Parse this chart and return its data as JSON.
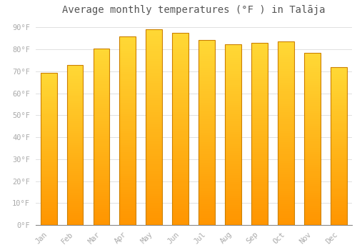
{
  "months": [
    "Jan",
    "Feb",
    "Mar",
    "Apr",
    "May",
    "Jun",
    "Jul",
    "Aug",
    "Sep",
    "Oct",
    "Nov",
    "Dec"
  ],
  "values": [
    69.4,
    73.0,
    80.4,
    85.8,
    89.2,
    87.6,
    84.2,
    82.4,
    82.9,
    83.7,
    78.4,
    71.8
  ],
  "title": "Average monthly temperatures (°F ) in Talāja",
  "ylabel_ticks": [
    "0°F",
    "10°F",
    "20°F",
    "30°F",
    "40°F",
    "50°F",
    "60°F",
    "70°F",
    "80°F",
    "90°F"
  ],
  "ytick_values": [
    0,
    10,
    20,
    30,
    40,
    50,
    60,
    70,
    80,
    90
  ],
  "ylim": [
    0,
    93
  ],
  "background_color": "#ffffff",
  "grid_color": "#e0e0e0",
  "tick_label_color": "#aaaaaa",
  "title_color": "#555555",
  "title_fontsize": 10,
  "tick_fontsize": 7.5,
  "bar_width": 0.62,
  "bar_color_top": "#FFD835",
  "bar_color_bottom": "#FF9500",
  "bar_border_color": "#CC8000",
  "n_gradient_steps": 80
}
